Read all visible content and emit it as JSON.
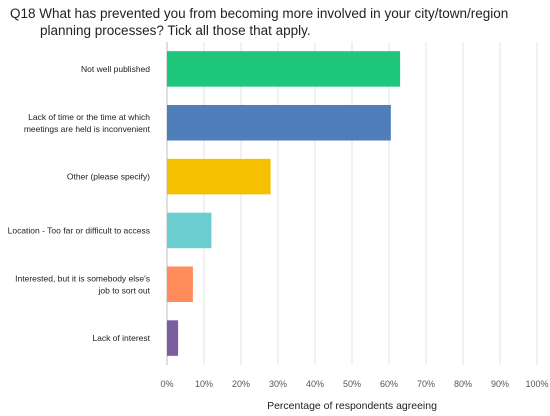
{
  "chart_data": {
    "type": "bar",
    "orientation": "horizontal",
    "title_line1": "Q18 What has prevented you from becoming more involved in your city/town/region",
    "title_line2": "planning processes? Tick all those that apply.",
    "xlabel": "Percentage of respondents agreeing",
    "ylabel": "",
    "xlim": [
      0,
      100
    ],
    "xticks": [
      "0%",
      "10%",
      "20%",
      "30%",
      "40%",
      "50%",
      "60%",
      "70%",
      "80%",
      "90%",
      "100%"
    ],
    "grid": true,
    "categories": [
      [
        "Not well published"
      ],
      [
        "Lack of time or the time at which",
        "meetings are held is inconvenient"
      ],
      [
        "Other (please specify)"
      ],
      [
        "Location - Too far or difficult to access"
      ],
      [
        "Interested, but it is somebody else's",
        "job to sort out"
      ],
      [
        "Lack of interest"
      ]
    ],
    "values": [
      63,
      60.5,
      28,
      12,
      7,
      3
    ],
    "colors": [
      "#1ec77b",
      "#4f7ebb",
      "#f5c000",
      "#6ccdd0",
      "#ff8c5a",
      "#7b5ea0"
    ]
  }
}
